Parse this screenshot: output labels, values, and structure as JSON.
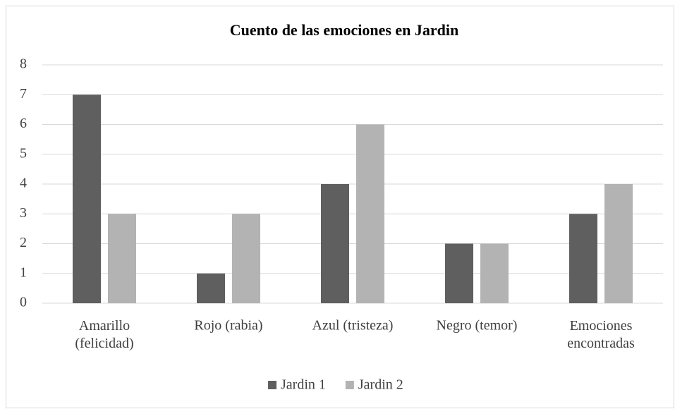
{
  "chart_data": {
    "type": "bar",
    "title": "Cuento de las emociones en Jardin",
    "categories": [
      "Amarillo\n(felicidad)",
      "Rojo (rabia)",
      "Azul (tristeza)",
      "Negro (temor)",
      "Emociones\nencontradas"
    ],
    "series": [
      {
        "name": "Jardin 1",
        "color": "#5f5f5f",
        "values": [
          7,
          1,
          4,
          2,
          3
        ]
      },
      {
        "name": "Jardin 2",
        "color": "#b3b3b3",
        "values": [
          3,
          3,
          6,
          2,
          4
        ]
      }
    ],
    "ylim": [
      0,
      8
    ],
    "yticks": [
      0,
      1,
      2,
      3,
      4,
      5,
      6,
      7,
      8
    ],
    "grid": true,
    "legend": "bottom"
  }
}
